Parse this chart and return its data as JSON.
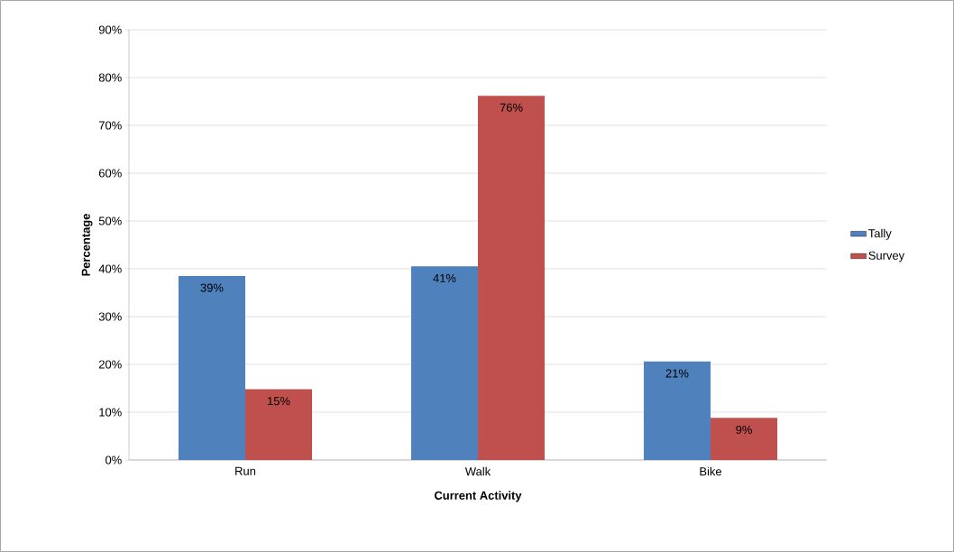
{
  "chart_data": {
    "type": "bar",
    "xlabel": "Current Activity",
    "ylabel": "Percentage",
    "categories": [
      "Run",
      "Walk",
      "Bike"
    ],
    "series": [
      {
        "name": "Tally",
        "color": "#4f81bd",
        "values": [
          38.5,
          40.5,
          20.6
        ],
        "value_labels": [
          "39%",
          "41%",
          "21%"
        ]
      },
      {
        "name": "Survey",
        "color": "#c0504d",
        "values": [
          14.8,
          76.2,
          8.8
        ],
        "value_labels": [
          "15%",
          "76%",
          "9%"
        ]
      }
    ],
    "ylim": [
      0,
      90
    ],
    "yticks": [
      {
        "value": 0,
        "label": "0%"
      },
      {
        "value": 10,
        "label": "10%"
      },
      {
        "value": 20,
        "label": "20%"
      },
      {
        "value": 30,
        "label": "30%"
      },
      {
        "value": 40,
        "label": "40%"
      },
      {
        "value": 50,
        "label": "50%"
      },
      {
        "value": 60,
        "label": "60%"
      },
      {
        "value": 70,
        "label": "70%"
      },
      {
        "value": 80,
        "label": "80%"
      },
      {
        "value": 90,
        "label": "90%"
      }
    ],
    "grid": "y",
    "legend": "right"
  }
}
